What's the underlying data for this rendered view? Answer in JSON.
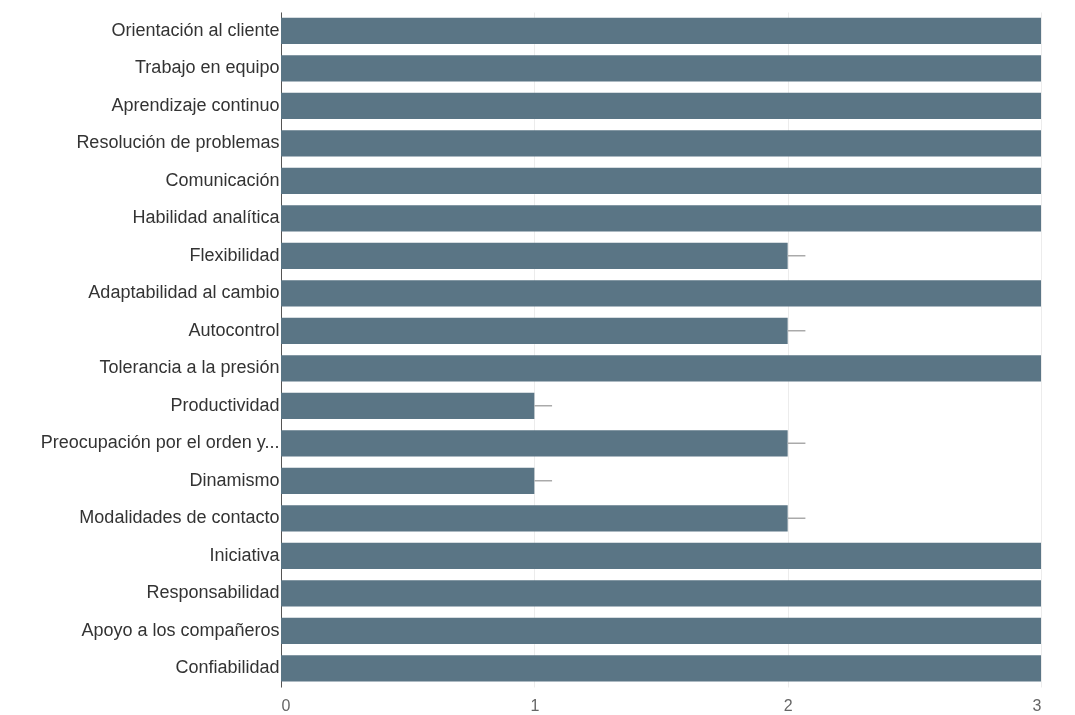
{
  "chart_data": {
    "type": "bar",
    "orientation": "horizontal",
    "categories": [
      "Orientación al cliente",
      "Trabajo en equipo",
      "Aprendizaje continuo",
      "Resolución de problemas",
      "Comunicación",
      "Habilidad analítica",
      "Flexibilidad",
      "Adaptabilidad al cambio",
      "Autocontrol",
      "Tolerancia a la presión",
      "Productividad",
      "Preocupación por el orden y...",
      "Dinamismo",
      "Modalidades de contacto",
      "Iniciativa",
      "Responsabilidad",
      "Apoyo a los compañeros",
      "Confiabilidad"
    ],
    "values": [
      3,
      3,
      3,
      3,
      3,
      3,
      2,
      3,
      2,
      3,
      1,
      2,
      1,
      2,
      3,
      3,
      3,
      3
    ],
    "errors": [
      null,
      null,
      null,
      null,
      null,
      null,
      [
        2,
        2.07
      ],
      null,
      [
        2,
        2.07
      ],
      null,
      [
        1,
        1.07
      ],
      [
        2,
        2.07
      ],
      [
        1,
        1.07
      ],
      [
        2,
        2.07
      ],
      null,
      null,
      null,
      null
    ],
    "color": "#5a7585",
    "xlim": [
      0,
      3
    ],
    "xticks": [
      0,
      1,
      2,
      3
    ],
    "grid": "x"
  }
}
